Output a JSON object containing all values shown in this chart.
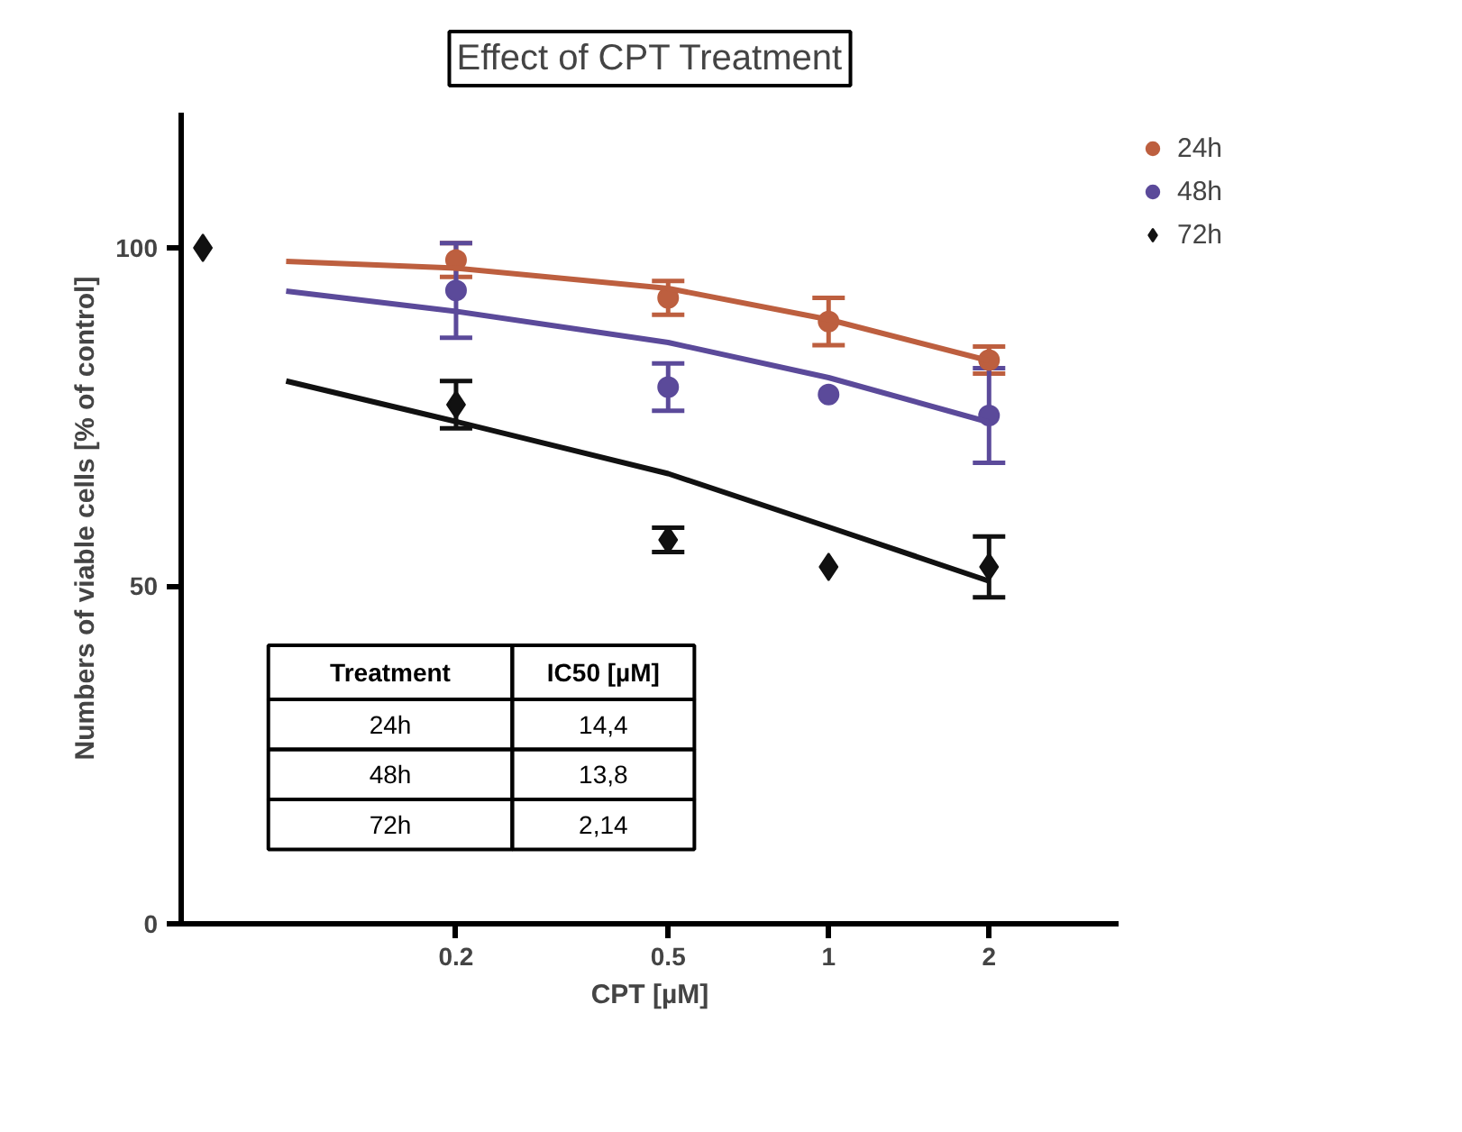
{
  "chart_data": {
    "type": "scatter",
    "title": "Effect of CPT Treatment",
    "xlabel": "CPT [µM]",
    "ylabel": "Numbers of viable cells [% of control]",
    "log": "x",
    "xlim": [
      0.061,
      3.5
    ],
    "xticks": [
      0.2,
      0.5,
      1,
      2
    ],
    "ylim": [
      0,
      120
    ],
    "yticks": [
      0,
      50,
      100
    ],
    "grid": false,
    "legend": "right",
    "series": [
      {
        "name": "24h",
        "color": "#bd5f3f",
        "marker": "circle",
        "x": [
          0.2,
          0.5,
          1,
          2
        ],
        "values": [
          98.2,
          92.6,
          89.1,
          83.4
        ],
        "errors": [
          2.5,
          2.5,
          3.5,
          2
        ]
      },
      {
        "name": "48h",
        "color": "#5b4a9a",
        "marker": "circle",
        "x": [
          0.2,
          0.5,
          1,
          2
        ],
        "values": [
          93.7,
          79.4,
          78.3,
          75.2
        ],
        "errors": [
          7,
          3.5,
          null,
          7
        ]
      },
      {
        "name": "72h",
        "color": "#111111",
        "marker": "diamond",
        "x": [
          0.067,
          0.2,
          0.5,
          1,
          2
        ],
        "values": [
          100,
          76.8,
          56.8,
          52.8,
          52.8
        ],
        "errors": [
          null,
          3.5,
          1.8,
          null,
          4.5
        ]
      },
      {
        "type": "line",
        "color": "#bd5f3f",
        "x": [
          0.096,
          0.2,
          0.5,
          1,
          2
        ],
        "values": [
          98,
          97,
          94,
          89.4,
          83.3
        ]
      },
      {
        "type": "line",
        "color": "#5b4a9a",
        "x": [
          0.096,
          0.2,
          0.5,
          1,
          2
        ],
        "values": [
          93.6,
          90.6,
          86,
          80.8,
          74.2
        ]
      },
      {
        "type": "line",
        "color": "#111111",
        "x": [
          0.096,
          0.2,
          0.5,
          1,
          2
        ],
        "values": [
          80.3,
          74.3,
          66.6,
          58.7,
          50.7
        ]
      }
    ],
    "annotations": [
      "Treatment",
      "IC50 [µM]",
      "24h",
      "14,4",
      "48h",
      "13,8",
      "72h",
      "2,14"
    ]
  }
}
